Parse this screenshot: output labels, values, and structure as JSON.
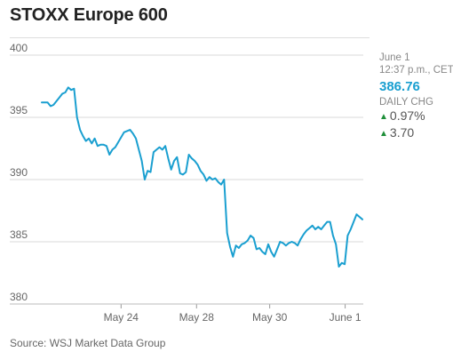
{
  "title": "STOXX Europe 600",
  "info": {
    "date": "June 1",
    "time": "12:37 p.m., CET",
    "price": "386.76",
    "daily_label": "DAILY CHG",
    "pct_change": "0.97%",
    "pt_change": "3.70",
    "up_arrow": "▲"
  },
  "colors": {
    "line": "#1a9fd0",
    "price": "#1a9fd0",
    "up": "#1f8f3a",
    "grid": "#d9d9d9"
  },
  "source": "Source: WSJ Market Data Group",
  "chart_data": {
    "type": "line",
    "title": "STOXX Europe 600",
    "xlabel": "",
    "ylabel": "",
    "ylim": [
      380,
      400
    ],
    "yticks": [
      400,
      395,
      390,
      385,
      380
    ],
    "x_ticks": [
      {
        "label": "May 24",
        "pos": 0.265
      },
      {
        "label": "May 28",
        "pos": 0.494
      },
      {
        "label": "May 30",
        "pos": 0.716
      },
      {
        "label": "June 1",
        "pos": 0.945
      }
    ],
    "grid": true,
    "series": [
      {
        "name": "",
        "values": [
          396.2,
          396.2,
          396.2,
          395.9,
          396.0,
          396.3,
          396.6,
          396.9,
          397.0,
          397.4,
          397.2,
          397.3,
          395.0,
          394.0,
          393.5,
          393.1,
          393.3,
          392.9,
          393.3,
          392.7,
          392.8,
          392.8,
          392.7,
          392.0,
          392.4,
          392.6,
          393.0,
          393.4,
          393.8,
          393.9,
          394.0,
          393.7,
          393.3,
          392.4,
          391.5,
          390.0,
          390.7,
          390.6,
          392.2,
          392.4,
          392.6,
          392.4,
          392.7,
          391.7,
          390.8,
          391.5,
          391.8,
          390.5,
          390.4,
          390.6,
          392.0,
          391.7,
          391.5,
          391.2,
          390.7,
          390.4,
          389.9,
          390.2,
          390.0,
          390.1,
          389.8,
          389.6,
          390.0,
          385.7,
          384.6,
          383.8,
          384.7,
          384.5,
          384.8,
          384.9,
          385.1,
          385.5,
          385.3,
          384.4,
          384.5,
          384.2,
          384.0,
          384.8,
          384.2,
          383.8,
          384.4,
          385.0,
          384.9,
          384.7,
          384.9,
          385.0,
          384.9,
          384.7,
          385.2,
          385.6,
          385.9,
          386.1,
          386.3,
          386.0,
          386.2,
          386.0,
          386.3,
          386.6,
          386.6,
          385.5,
          384.8,
          383.0,
          383.3,
          383.2,
          385.5,
          386.0,
          386.6,
          387.2,
          387.0,
          386.8
        ]
      }
    ]
  }
}
